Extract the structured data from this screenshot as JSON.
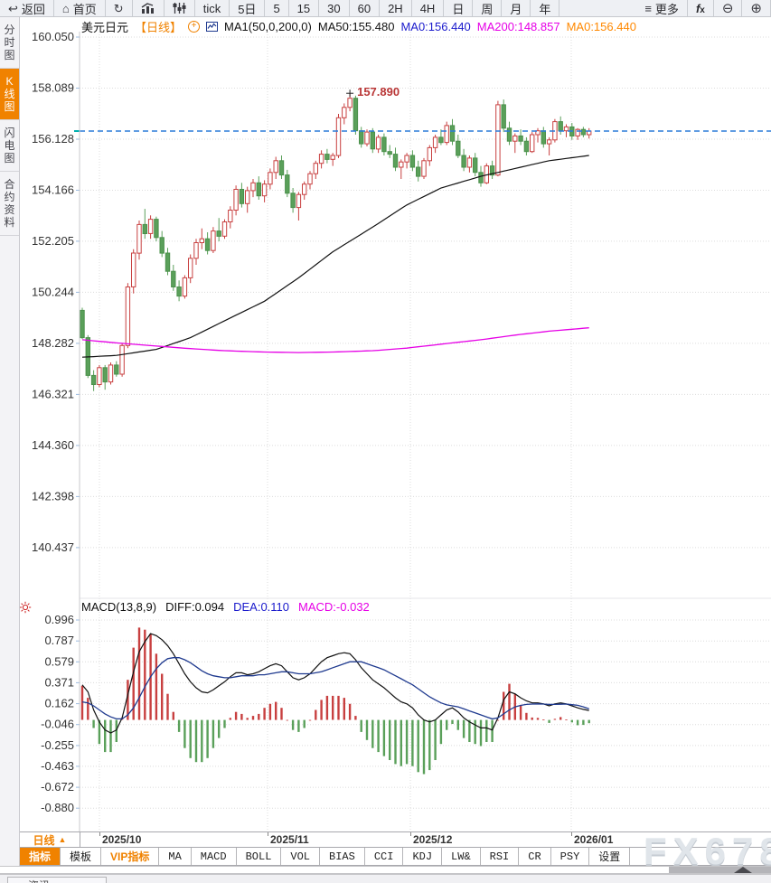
{
  "app": {
    "watermark": "FX678"
  },
  "colors": {
    "accent_orange": "#f08200",
    "candle_up": "#c84040",
    "candle_down": "#5aa05a",
    "ma50_line": "#111111",
    "ma200_line": "#e600e6",
    "diff_line": "#111111",
    "dea_line": "#1f3a8f",
    "current_price_dash": "#2b7bd9",
    "annotation_red": "#b93636",
    "grid": "#dcdcdc"
  },
  "toolbar": {
    "buttons": [
      {
        "id": "back",
        "icon": "back-arrow",
        "label": "返回"
      },
      {
        "id": "home",
        "icon": "home",
        "label": "首页"
      },
      {
        "id": "refresh",
        "icon": "refresh",
        "label": ""
      },
      {
        "id": "bar-chart",
        "icon": "bar-chart",
        "label": ""
      },
      {
        "id": "sliders",
        "icon": "sliders",
        "label": ""
      },
      {
        "id": "tick",
        "icon": "",
        "label": "tick"
      },
      {
        "id": "5d",
        "icon": "",
        "label": "5日"
      },
      {
        "id": "5",
        "icon": "",
        "label": "5"
      },
      {
        "id": "15",
        "icon": "",
        "label": "15"
      },
      {
        "id": "30",
        "icon": "",
        "label": "30"
      },
      {
        "id": "60",
        "icon": "",
        "label": "60"
      },
      {
        "id": "2h",
        "icon": "",
        "label": "2H"
      },
      {
        "id": "4h",
        "icon": "",
        "label": "4H"
      },
      {
        "id": "day",
        "icon": "",
        "label": "日"
      },
      {
        "id": "week",
        "icon": "",
        "label": "周"
      },
      {
        "id": "month",
        "icon": "",
        "label": "月"
      },
      {
        "id": "year",
        "icon": "",
        "label": "年"
      },
      {
        "id": "more",
        "icon": "menu",
        "label": "更多"
      },
      {
        "id": "fx",
        "icon": "fx",
        "label": ""
      },
      {
        "id": "zoom-out",
        "icon": "zoom-out",
        "label": ""
      },
      {
        "id": "zoom-in",
        "icon": "zoom-in",
        "label": ""
      }
    ]
  },
  "sidebar": {
    "items": [
      {
        "label": "分时图",
        "active": false
      },
      {
        "label": "K线图",
        "active": true
      },
      {
        "label": "闪电图",
        "active": false
      },
      {
        "label": "合约资料",
        "active": false
      }
    ]
  },
  "header": {
    "symbol": "美元日元",
    "period_tag": "【日线】",
    "plus": "+",
    "ma_settings": "MA1(50,0,200,0)",
    "ma50_label": "MA50:155.480",
    "ma0_blue_label": "MA0:156.440",
    "ma200_label": "MA200:148.857",
    "ma0_orange_label": "MA0:156.440"
  },
  "macd_header": {
    "name": "MACD(13,8,9)",
    "diff_label": "DIFF:0.094",
    "dea_label": "DEA:0.110",
    "macd_label": "MACD:-0.032"
  },
  "period_selector": {
    "label": "日线",
    "arrow": "▲"
  },
  "bottom_tabs": [
    {
      "label": "指标",
      "style": "active"
    },
    {
      "label": "模板",
      "style": ""
    },
    {
      "label": "VIP指标",
      "style": "vip"
    },
    {
      "label": "MA",
      "style": "latin"
    },
    {
      "label": "MACD",
      "style": "latin"
    },
    {
      "label": "BOLL",
      "style": "latin"
    },
    {
      "label": "VOL",
      "style": "latin"
    },
    {
      "label": "BIAS",
      "style": "latin"
    },
    {
      "label": "CCI",
      "style": "latin"
    },
    {
      "label": "KDJ",
      "style": "latin"
    },
    {
      "label": "LW&",
      "style": "latin"
    },
    {
      "label": "RSI",
      "style": "latin"
    },
    {
      "label": "CR",
      "style": "latin"
    },
    {
      "label": "PSY",
      "style": "latin"
    },
    {
      "label": "设置",
      "style": ""
    }
  ],
  "bottom_strip": {
    "news_tab": "资讯"
  },
  "chart_data": {
    "type": "candlestick+macd",
    "symbol": "美元日元",
    "period": "日线",
    "price_axis_ticks": [
      160.05,
      158.089,
      156.128,
      154.166,
      152.205,
      150.244,
      148.282,
      146.321,
      144.36,
      142.398,
      140.437
    ],
    "macd_axis_ticks": [
      0.996,
      0.787,
      0.579,
      0.371,
      0.162,
      -0.046,
      -0.255,
      -0.463,
      -0.672,
      -0.88
    ],
    "x_axis_labels": [
      "2025/10",
      "2025/11",
      "2025/12",
      "2026/01"
    ],
    "current_price": 156.44,
    "high_annotation": {
      "label": "157.890",
      "price": 157.89,
      "candle_index": 47
    },
    "legend": [
      "MA50",
      "MA200",
      "DIFF",
      "DEA",
      "MACD"
    ],
    "candles": [
      [
        149.55,
        149.65,
        148.45,
        148.5
      ],
      [
        148.5,
        148.6,
        146.95,
        147.05
      ],
      [
        147.05,
        147.25,
        146.45,
        146.7
      ],
      [
        146.7,
        147.45,
        146.6,
        147.35
      ],
      [
        147.35,
        147.45,
        146.5,
        146.8
      ],
      [
        146.8,
        147.55,
        146.7,
        147.45
      ],
      [
        147.45,
        147.6,
        147.0,
        147.1
      ],
      [
        147.1,
        148.3,
        147.0,
        148.2
      ],
      [
        148.2,
        150.6,
        148.1,
        150.45
      ],
      [
        150.45,
        151.9,
        150.2,
        151.75
      ],
      [
        151.75,
        153.0,
        151.5,
        152.85
      ],
      [
        152.85,
        153.45,
        152.3,
        152.5
      ],
      [
        152.5,
        153.2,
        152.3,
        153.05
      ],
      [
        153.05,
        153.15,
        152.2,
        152.35
      ],
      [
        152.35,
        152.6,
        151.6,
        151.75
      ],
      [
        151.75,
        151.95,
        150.9,
        151.05
      ],
      [
        151.05,
        151.3,
        150.3,
        150.45
      ],
      [
        150.45,
        150.7,
        149.9,
        150.1
      ],
      [
        150.1,
        150.9,
        150.0,
        150.8
      ],
      [
        150.8,
        151.7,
        150.6,
        151.55
      ],
      [
        151.55,
        152.3,
        151.3,
        152.15
      ],
      [
        152.15,
        152.7,
        151.9,
        152.3
      ],
      [
        152.3,
        152.55,
        151.7,
        151.85
      ],
      [
        151.85,
        152.75,
        151.75,
        152.6
      ],
      [
        152.6,
        153.1,
        152.2,
        152.4
      ],
      [
        152.4,
        153.05,
        152.3,
        152.95
      ],
      [
        152.95,
        153.55,
        152.7,
        153.4
      ],
      [
        153.4,
        154.35,
        153.2,
        154.2
      ],
      [
        154.2,
        154.45,
        153.5,
        153.65
      ],
      [
        153.65,
        154.3,
        153.3,
        154.15
      ],
      [
        154.15,
        154.6,
        153.9,
        154.45
      ],
      [
        154.45,
        154.7,
        153.8,
        153.95
      ],
      [
        153.95,
        154.55,
        153.7,
        154.4
      ],
      [
        154.4,
        155.0,
        154.2,
        154.85
      ],
      [
        154.85,
        155.45,
        154.6,
        155.3
      ],
      [
        155.3,
        155.5,
        154.6,
        154.75
      ],
      [
        154.75,
        154.95,
        153.9,
        154.05
      ],
      [
        154.05,
        154.25,
        153.3,
        153.5
      ],
      [
        153.5,
        154.1,
        153.0,
        154.0
      ],
      [
        154.0,
        154.5,
        153.8,
        154.4
      ],
      [
        154.4,
        154.9,
        154.2,
        154.8
      ],
      [
        154.8,
        155.3,
        154.6,
        155.2
      ],
      [
        155.2,
        155.7,
        155.0,
        155.55
      ],
      [
        155.55,
        155.75,
        155.2,
        155.35
      ],
      [
        155.35,
        155.6,
        155.1,
        155.5
      ],
      [
        155.5,
        157.1,
        155.4,
        156.95
      ],
      [
        156.95,
        157.5,
        156.7,
        157.35
      ],
      [
        157.35,
        157.89,
        157.2,
        157.7
      ],
      [
        157.7,
        157.8,
        156.3,
        156.45
      ],
      [
        156.45,
        156.6,
        155.8,
        155.95
      ],
      [
        155.95,
        156.5,
        155.85,
        156.4
      ],
      [
        156.4,
        156.55,
        155.6,
        155.75
      ],
      [
        155.75,
        156.3,
        155.6,
        156.2
      ],
      [
        156.2,
        156.35,
        155.5,
        155.65
      ],
      [
        155.65,
        155.9,
        155.4,
        155.55
      ],
      [
        155.55,
        155.8,
        154.9,
        155.05
      ],
      [
        155.05,
        155.35,
        154.6,
        155.25
      ],
      [
        155.25,
        155.6,
        155.0,
        155.5
      ],
      [
        155.5,
        155.7,
        154.9,
        155.05
      ],
      [
        155.05,
        155.3,
        154.5,
        154.7
      ],
      [
        154.7,
        155.4,
        154.6,
        155.3
      ],
      [
        155.3,
        155.9,
        155.1,
        155.8
      ],
      [
        155.8,
        156.3,
        155.6,
        156.2
      ],
      [
        156.2,
        156.5,
        155.9,
        156.0
      ],
      [
        156.0,
        156.8,
        155.9,
        156.65
      ],
      [
        156.65,
        156.9,
        155.9,
        156.05
      ],
      [
        156.05,
        156.3,
        155.4,
        155.5
      ],
      [
        155.5,
        155.75,
        154.9,
        155.05
      ],
      [
        155.05,
        155.5,
        154.85,
        155.4
      ],
      [
        155.4,
        155.6,
        154.7,
        154.85
      ],
      [
        154.85,
        155.1,
        154.3,
        154.45
      ],
      [
        154.45,
        155.2,
        154.4,
        155.1
      ],
      [
        155.1,
        155.3,
        154.6,
        154.75
      ],
      [
        154.75,
        157.6,
        154.7,
        157.45
      ],
      [
        157.45,
        157.65,
        156.4,
        156.55
      ],
      [
        156.55,
        156.8,
        155.9,
        156.05
      ],
      [
        156.05,
        156.35,
        155.6,
        156.25
      ],
      [
        156.25,
        156.5,
        155.9,
        156.05
      ],
      [
        156.05,
        156.2,
        155.5,
        155.65
      ],
      [
        155.65,
        156.4,
        155.6,
        156.3
      ],
      [
        156.3,
        156.55,
        156.0,
        156.45
      ],
      [
        156.45,
        156.6,
        155.8,
        155.95
      ],
      [
        155.95,
        156.2,
        155.5,
        156.1
      ],
      [
        156.1,
        156.9,
        156.0,
        156.8
      ],
      [
        156.8,
        157.0,
        156.3,
        156.45
      ],
      [
        156.45,
        156.7,
        156.2,
        156.6
      ],
      [
        156.6,
        156.75,
        156.1,
        156.25
      ],
      [
        156.25,
        156.55,
        156.1,
        156.5
      ],
      [
        156.5,
        156.6,
        156.2,
        156.3
      ],
      [
        156.3,
        156.55,
        156.15,
        156.44
      ]
    ],
    "ma50_ctrl": [
      [
        0,
        147.75
      ],
      [
        6,
        147.82
      ],
      [
        13,
        148.05
      ],
      [
        19,
        148.5
      ],
      [
        25,
        149.15
      ],
      [
        32,
        149.9
      ],
      [
        38,
        150.8
      ],
      [
        44,
        151.8
      ],
      [
        51,
        152.75
      ],
      [
        57,
        153.6
      ],
      [
        63,
        154.25
      ],
      [
        70,
        154.7
      ],
      [
        76,
        155.0
      ],
      [
        82,
        155.3
      ],
      [
        89,
        155.5
      ]
    ],
    "ma200_ctrl": [
      [
        0,
        148.42
      ],
      [
        6,
        148.3
      ],
      [
        13,
        148.18
      ],
      [
        19,
        148.08
      ],
      [
        25,
        148.0
      ],
      [
        32,
        147.95
      ],
      [
        38,
        147.93
      ],
      [
        44,
        147.95
      ],
      [
        51,
        148.0
      ],
      [
        57,
        148.1
      ],
      [
        63,
        148.25
      ],
      [
        70,
        148.42
      ],
      [
        76,
        148.6
      ],
      [
        82,
        148.75
      ],
      [
        89,
        148.88
      ]
    ],
    "macd": {
      "diff": [
        0.35,
        0.28,
        0.1,
        -0.02,
        -0.1,
        -0.13,
        -0.1,
        0.02,
        0.25,
        0.48,
        0.68,
        0.78,
        0.86,
        0.84,
        0.8,
        0.74,
        0.66,
        0.56,
        0.46,
        0.38,
        0.32,
        0.28,
        0.27,
        0.3,
        0.34,
        0.38,
        0.43,
        0.47,
        0.47,
        0.45,
        0.46,
        0.48,
        0.51,
        0.54,
        0.56,
        0.54,
        0.48,
        0.42,
        0.4,
        0.42,
        0.46,
        0.52,
        0.58,
        0.62,
        0.64,
        0.66,
        0.67,
        0.66,
        0.6,
        0.52,
        0.46,
        0.4,
        0.36,
        0.32,
        0.27,
        0.22,
        0.18,
        0.16,
        0.12,
        0.05,
        0.0,
        -0.02,
        0.0,
        0.05,
        0.1,
        0.12,
        0.08,
        0.02,
        -0.02,
        -0.05,
        -0.08,
        -0.08,
        -0.1,
        0.02,
        0.2,
        0.28,
        0.26,
        0.22,
        0.19,
        0.17,
        0.17,
        0.16,
        0.14,
        0.16,
        0.17,
        0.16,
        0.14,
        0.12,
        0.105,
        0.094
      ],
      "dea": [
        0.18,
        0.17,
        0.14,
        0.1,
        0.06,
        0.03,
        0.01,
        0.01,
        0.05,
        0.12,
        0.22,
        0.33,
        0.43,
        0.51,
        0.57,
        0.61,
        0.62,
        0.62,
        0.6,
        0.57,
        0.53,
        0.49,
        0.46,
        0.44,
        0.43,
        0.42,
        0.42,
        0.43,
        0.44,
        0.44,
        0.44,
        0.45,
        0.45,
        0.46,
        0.47,
        0.48,
        0.48,
        0.47,
        0.46,
        0.46,
        0.46,
        0.47,
        0.48,
        0.5,
        0.52,
        0.54,
        0.56,
        0.58,
        0.58,
        0.58,
        0.56,
        0.54,
        0.52,
        0.5,
        0.47,
        0.44,
        0.41,
        0.38,
        0.35,
        0.31,
        0.27,
        0.23,
        0.2,
        0.17,
        0.15,
        0.14,
        0.13,
        0.11,
        0.09,
        0.07,
        0.05,
        0.03,
        0.01,
        0.02,
        0.06,
        0.1,
        0.13,
        0.145,
        0.155,
        0.158,
        0.16,
        0.158,
        0.155,
        0.155,
        0.156,
        0.158,
        0.152,
        0.146,
        0.13,
        0.11
      ]
    }
  }
}
